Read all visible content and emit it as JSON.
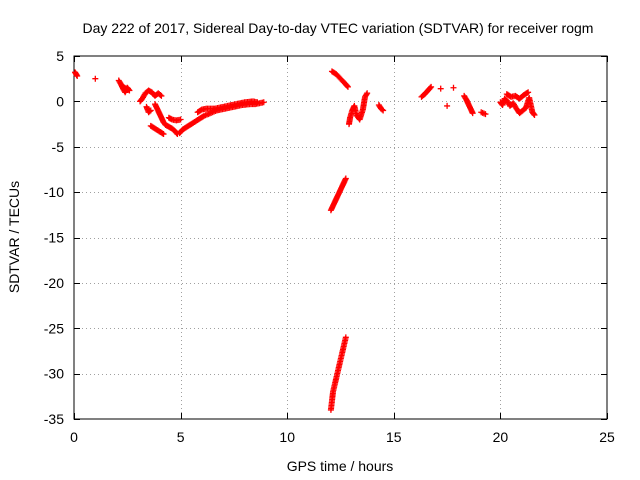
{
  "chart_data": {
    "type": "scatter",
    "title": "Day 222 of 2017, Sidereal Day-to-day VTEC variation (SDTVAR) for receiver rogm",
    "xlabel": "GPS time / hours",
    "ylabel": "SDTVAR / TECUs",
    "xlim": [
      0,
      25
    ],
    "ylim": [
      -35,
      5
    ],
    "xticks": [
      0,
      5,
      10,
      15,
      20,
      25
    ],
    "yticks": [
      5,
      0,
      -5,
      -10,
      -15,
      -20,
      -25,
      -30,
      -35
    ],
    "grid": true,
    "marker": "+",
    "color": "#ff0000",
    "series": [
      {
        "name": "SDTVAR",
        "segments": [
          [
            [
              0.05,
              3.2
            ],
            [
              0.1,
              3.0
            ],
            [
              0.15,
              2.8
            ]
          ],
          [
            [
              1.0,
              2.5
            ]
          ],
          [
            [
              2.1,
              2.3
            ],
            [
              2.2,
              1.9
            ],
            [
              2.3,
              1.4
            ],
            [
              2.4,
              1.0
            ],
            [
              2.5,
              1.5
            ],
            [
              2.6,
              1.2
            ],
            [
              2.25,
              1.7
            ]
          ],
          [
            [
              3.1,
              0.0
            ],
            [
              3.2,
              0.3
            ],
            [
              3.35,
              0.9
            ],
            [
              3.5,
              1.2
            ],
            [
              3.65,
              1.0
            ],
            [
              3.8,
              0.6
            ],
            [
              3.95,
              0.9
            ],
            [
              4.1,
              0.6
            ]
          ],
          [
            [
              3.4,
              -0.6
            ],
            [
              3.5,
              -1.2
            ],
            [
              3.6,
              -1.0
            ]
          ],
          [
            [
              3.6,
              -2.7
            ],
            [
              3.8,
              -3.0
            ],
            [
              4.0,
              -3.3
            ],
            [
              4.2,
              -3.6
            ]
          ],
          [
            [
              3.8,
              -0.3
            ],
            [
              3.9,
              -0.8
            ],
            [
              4.0,
              -1.3
            ],
            [
              4.1,
              -1.8
            ],
            [
              4.2,
              -2.3
            ],
            [
              4.3,
              -2.6
            ],
            [
              4.45,
              -2.8
            ],
            [
              4.6,
              -3.0
            ],
            [
              4.75,
              -3.3
            ],
            [
              4.85,
              -3.6
            ]
          ],
          [
            [
              4.45,
              -1.8
            ],
            [
              4.6,
              -2.0
            ],
            [
              4.8,
              -2.1
            ],
            [
              5.0,
              -2.0
            ]
          ],
          [
            [
              4.95,
              -3.5
            ],
            [
              5.1,
              -3.1
            ],
            [
              5.3,
              -2.8
            ],
            [
              5.5,
              -2.5
            ],
            [
              5.7,
              -2.2
            ],
            [
              5.9,
              -1.9
            ],
            [
              6.1,
              -1.6
            ],
            [
              6.3,
              -1.4
            ],
            [
              6.5,
              -1.2
            ],
            [
              6.7,
              -1.0
            ],
            [
              6.9,
              -0.9
            ],
            [
              7.1,
              -0.8
            ],
            [
              7.3,
              -0.7
            ],
            [
              7.5,
              -0.6
            ],
            [
              7.7,
              -0.5
            ],
            [
              7.9,
              -0.4
            ],
            [
              8.1,
              -0.35
            ],
            [
              8.3,
              -0.3
            ],
            [
              8.5,
              -0.3
            ],
            [
              8.7,
              -0.2
            ],
            [
              8.9,
              -0.1
            ]
          ],
          [
            [
              5.8,
              -1.2
            ],
            [
              6.0,
              -0.9
            ],
            [
              6.2,
              -0.8
            ],
            [
              6.4,
              -0.8
            ],
            [
              6.6,
              -0.8
            ],
            [
              6.8,
              -0.7
            ],
            [
              7.0,
              -0.6
            ],
            [
              7.2,
              -0.5
            ],
            [
              7.4,
              -0.4
            ],
            [
              7.6,
              -0.3
            ],
            [
              7.8,
              -0.2
            ],
            [
              8.0,
              -0.1
            ],
            [
              8.2,
              -0.05
            ],
            [
              8.4,
              0.0
            ],
            [
              8.6,
              -0.1
            ]
          ],
          [
            [
              12.05,
              -34.0
            ],
            [
              12.15,
              -32.0
            ],
            [
              12.25,
              -31.0
            ],
            [
              12.35,
              -30.0
            ],
            [
              12.45,
              -29.0
            ],
            [
              12.55,
              -28.0
            ],
            [
              12.65,
              -27.0
            ],
            [
              12.75,
              -26.0
            ]
          ],
          [
            [
              12.05,
              -12.0
            ],
            [
              12.15,
              -11.5
            ],
            [
              12.25,
              -11.0
            ],
            [
              12.35,
              -10.5
            ],
            [
              12.45,
              -10.0
            ],
            [
              12.55,
              -9.5
            ],
            [
              12.65,
              -9.0
            ],
            [
              12.75,
              -8.5
            ]
          ],
          [
            [
              12.1,
              3.3
            ],
            [
              12.3,
              3.0
            ],
            [
              12.5,
              2.5
            ],
            [
              12.7,
              2.0
            ],
            [
              12.85,
              1.6
            ]
          ],
          [
            [
              12.9,
              -2.5
            ],
            [
              12.95,
              -1.8
            ],
            [
              13.05,
              -1.0
            ],
            [
              13.15,
              -0.5
            ],
            [
              13.25,
              -1.5
            ],
            [
              13.4,
              -2.0
            ],
            [
              13.55,
              -0.9
            ],
            [
              13.65,
              0.5
            ],
            [
              13.75,
              0.9
            ]
          ],
          [
            [
              14.3,
              -0.4
            ],
            [
              14.4,
              -0.8
            ],
            [
              14.5,
              -1.0
            ]
          ],
          [
            [
              16.3,
              0.5
            ],
            [
              16.45,
              0.8
            ],
            [
              16.6,
              1.2
            ],
            [
              16.75,
              1.6
            ]
          ],
          [
            [
              17.2,
              1.4
            ]
          ],
          [
            [
              17.5,
              -0.5
            ]
          ],
          [
            [
              17.8,
              1.5
            ]
          ],
          [
            [
              18.3,
              0.6
            ],
            [
              18.4,
              0.2
            ],
            [
              18.5,
              -0.3
            ],
            [
              18.6,
              -0.8
            ],
            [
              18.7,
              -1.3
            ]
          ],
          [
            [
              19.1,
              -1.2
            ],
            [
              19.3,
              -1.4
            ]
          ],
          [
            [
              20.0,
              -0.1
            ],
            [
              20.1,
              -0.4
            ],
            [
              20.2,
              0.3
            ],
            [
              20.3,
              0.1
            ],
            [
              20.45,
              -0.5
            ],
            [
              20.6,
              -0.2
            ],
            [
              20.75,
              -0.8
            ],
            [
              20.9,
              -1.3
            ],
            [
              21.0,
              -1.1
            ],
            [
              21.2,
              -0.7
            ],
            [
              21.35,
              0.4
            ],
            [
              21.5,
              -1.2
            ],
            [
              21.6,
              -1.5
            ]
          ],
          [
            [
              20.3,
              0.8
            ],
            [
              20.5,
              0.5
            ],
            [
              20.7,
              0.6
            ],
            [
              20.9,
              0.3
            ],
            [
              21.1,
              0.7
            ],
            [
              21.3,
              1.0
            ]
          ]
        ]
      }
    ]
  }
}
